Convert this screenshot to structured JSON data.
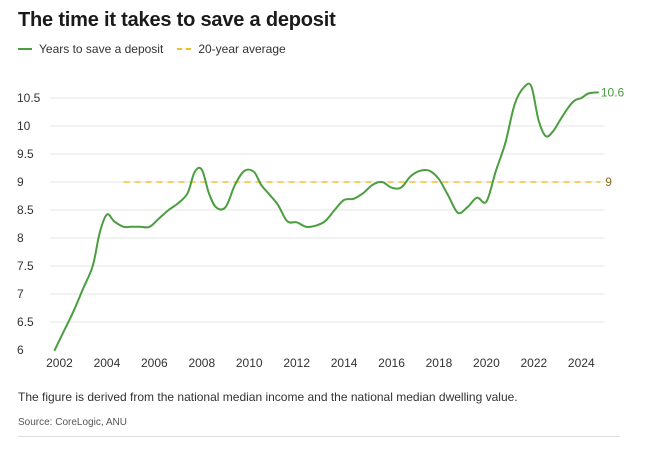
{
  "title": "The time it takes to save a deposit",
  "legend": {
    "series_label": "Years to save a deposit",
    "average_label": "20-year average"
  },
  "note": "The figure is derived from the national median income and the national median dwelling value.",
  "source": "Source: CoreLogic, ANU",
  "colors": {
    "series": "#4a9e3f",
    "average": "#f2c12e",
    "average_label": "#8a6a1a",
    "grid": "#e5e5e5"
  },
  "chart_data": {
    "type": "line",
    "title": "The time it takes to save a deposit",
    "xlabel": "",
    "ylabel": "",
    "xlim": [
      2001.6,
      2025.0
    ],
    "ylim": [
      6,
      11
    ],
    "x_ticks": [
      2002,
      2004,
      2006,
      2008,
      2010,
      2012,
      2014,
      2016,
      2018,
      2020,
      2022,
      2024
    ],
    "y_ticks": [
      6,
      6.5,
      7,
      7.5,
      8,
      8.5,
      9,
      9.5,
      10,
      10.5
    ],
    "y_tick_labels": [
      "6",
      "6.5",
      "7",
      "7.5",
      "8",
      "8.5",
      "9",
      "9.5",
      "10",
      "10.5"
    ],
    "grid": true,
    "legend_position": "top-left",
    "series": [
      {
        "name": "Years to save a deposit",
        "end_label": "10.6",
        "x": [
          2001.8,
          2002.2,
          2002.6,
          2003.0,
          2003.4,
          2003.7,
          2004.0,
          2004.3,
          2004.7,
          2005.0,
          2005.4,
          2005.8,
          2006.2,
          2006.6,
          2007.0,
          2007.4,
          2007.7,
          2008.0,
          2008.3,
          2008.6,
          2009.0,
          2009.4,
          2009.8,
          2010.2,
          2010.5,
          2010.8,
          2011.2,
          2011.6,
          2012.0,
          2012.4,
          2012.8,
          2013.2,
          2013.6,
          2014.0,
          2014.4,
          2014.8,
          2015.2,
          2015.6,
          2016.0,
          2016.4,
          2016.8,
          2017.2,
          2017.6,
          2018.0,
          2018.4,
          2018.8,
          2019.2,
          2019.6,
          2020.0,
          2020.4,
          2020.8,
          2021.2,
          2021.6,
          2021.9,
          2022.2,
          2022.5,
          2022.8,
          2023.1,
          2023.4,
          2023.7,
          2024.0,
          2024.3,
          2024.7
        ],
        "values": [
          6.0,
          6.35,
          6.7,
          7.1,
          7.5,
          8.1,
          8.42,
          8.3,
          8.2,
          8.2,
          8.2,
          8.2,
          8.35,
          8.5,
          8.62,
          8.8,
          9.18,
          9.22,
          8.8,
          8.55,
          8.55,
          8.95,
          9.2,
          9.18,
          8.95,
          8.8,
          8.6,
          8.3,
          8.28,
          8.2,
          8.22,
          8.3,
          8.5,
          8.68,
          8.7,
          8.8,
          8.95,
          9.0,
          8.9,
          8.9,
          9.1,
          9.2,
          9.2,
          9.05,
          8.75,
          8.45,
          8.55,
          8.72,
          8.65,
          9.2,
          9.7,
          10.4,
          10.7,
          10.7,
          10.1,
          9.82,
          9.9,
          10.1,
          10.3,
          10.45,
          10.5,
          10.58,
          10.6
        ]
      },
      {
        "name": "20-year average",
        "end_label": "9",
        "x": [
          2004.7,
          2024.8
        ],
        "values": [
          9,
          9
        ]
      }
    ]
  }
}
